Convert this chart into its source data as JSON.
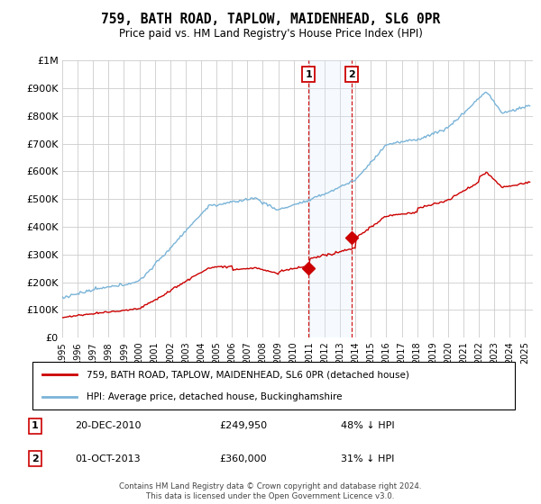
{
  "title": "759, BATH ROAD, TAPLOW, MAIDENHEAD, SL6 0PR",
  "subtitle": "Price paid vs. HM Land Registry's House Price Index (HPI)",
  "legend_line1": "759, BATH ROAD, TAPLOW, MAIDENHEAD, SL6 0PR (detached house)",
  "legend_line2": "HPI: Average price, detached house, Buckinghamshire",
  "footer": "Contains HM Land Registry data © Crown copyright and database right 2024.\nThis data is licensed under the Open Government Licence v3.0.",
  "sale1_date": "20-DEC-2010",
  "sale1_price": "£249,950",
  "sale1_hpi": "48% ↓ HPI",
  "sale2_date": "01-OCT-2013",
  "sale2_price": "£360,000",
  "sale2_hpi": "31% ↓ HPI",
  "hpi_color": "#7ab4d8",
  "price_color": "#cc0000",
  "vline_color": "#cc0000",
  "shade_color": "#ddeeff",
  "ylim": [
    0,
    1000000
  ],
  "yticks": [
    0,
    100000,
    200000,
    300000,
    400000,
    500000,
    600000,
    700000,
    800000,
    900000,
    1000000
  ],
  "ytick_labels": [
    "£0",
    "£100K",
    "£200K",
    "£300K",
    "£400K",
    "£500K",
    "£600K",
    "£700K",
    "£800K",
    "£900K",
    "£1M"
  ],
  "sale1_x": 2010.97,
  "sale1_y": 249950,
  "sale2_x": 2013.75,
  "sale2_y": 360000,
  "xlim_start": 1995.0,
  "xlim_end": 2025.5
}
